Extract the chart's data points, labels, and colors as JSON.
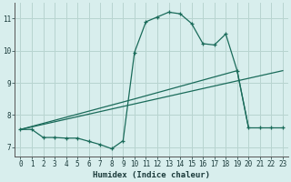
{
  "xlabel": "Humidex (Indice chaleur)",
  "bg_color": "#d8eeed",
  "grid_color": "#b8d4d0",
  "line_color": "#1a6b5a",
  "xlim": [
    -0.5,
    23.5
  ],
  "ylim": [
    6.7,
    11.5
  ],
  "yticks": [
    7,
    8,
    9,
    10,
    11
  ],
  "xticks": [
    0,
    1,
    2,
    3,
    4,
    5,
    6,
    7,
    8,
    9,
    10,
    11,
    12,
    13,
    14,
    15,
    16,
    17,
    18,
    19,
    20,
    21,
    22,
    23
  ],
  "line1_x": [
    0,
    1,
    2,
    3,
    4,
    5,
    6,
    7,
    8,
    9,
    10,
    11,
    12,
    13,
    14,
    15,
    16,
    17,
    18,
    19,
    20,
    21,
    22,
    23
  ],
  "line1_y": [
    7.55,
    7.55,
    7.3,
    7.3,
    7.28,
    7.28,
    7.18,
    7.08,
    6.95,
    7.2,
    9.95,
    10.9,
    11.05,
    11.2,
    11.15,
    10.85,
    10.22,
    10.18,
    10.52,
    9.38,
    7.6,
    7.6,
    7.6,
    7.6
  ],
  "line2_x": [
    0,
    10,
    19,
    20
  ],
  "line2_y": [
    7.55,
    8.5,
    9.38,
    7.6
  ],
  "line3_x": [
    0,
    23
  ],
  "line3_y": [
    7.55,
    9.38
  ]
}
